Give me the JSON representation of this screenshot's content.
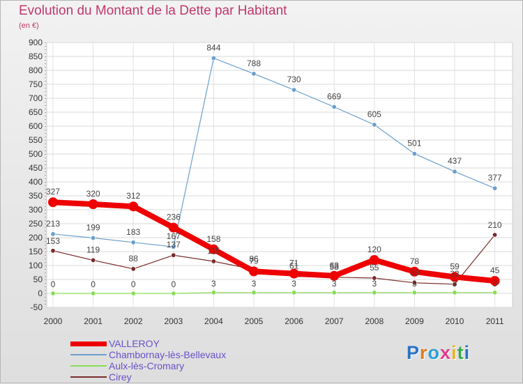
{
  "title": "Evolution du Montant de la Dette par Habitant",
  "subtitle": "(en €)",
  "logo_text": "Proxiti",
  "chart_data": {
    "type": "line",
    "title": "Evolution du Montant de la Dette par Habitant",
    "subtitle": "(en €)",
    "xlabel": "",
    "ylabel": "",
    "x": [
      2000,
      2001,
      2002,
      2003,
      2004,
      2005,
      2006,
      2007,
      2008,
      2009,
      2010,
      2011
    ],
    "ylim": [
      -50,
      900
    ],
    "yticks": [
      -50,
      0,
      50,
      100,
      150,
      200,
      250,
      300,
      350,
      400,
      450,
      500,
      550,
      600,
      650,
      700,
      750,
      800,
      850,
      900
    ],
    "grid": true,
    "legend_position": "bottom-left",
    "series": [
      {
        "name": "VALLEROY",
        "color": "#ee0000",
        "values": [
          327,
          320,
          312,
          236,
          158,
          79,
          71,
          63,
          120,
          78,
          59,
          45
        ]
      },
      {
        "name": "Chambornay-lès-Bellevaux",
        "color": "#6c9fcc",
        "values": [
          213,
          199,
          183,
          167,
          844,
          788,
          730,
          669,
          605,
          501,
          437,
          377
        ]
      },
      {
        "name": "Aulx-lès-Cromary",
        "color": "#88dd55",
        "values": [
          0,
          0,
          0,
          0,
          3,
          3,
          3,
          3,
          3,
          3,
          3,
          3
        ]
      },
      {
        "name": "Cirey",
        "color": "#7a2a2a",
        "values": [
          153,
          119,
          88,
          137,
          115,
          86,
          61,
          58,
          55,
          38,
          33,
          210
        ]
      }
    ]
  }
}
